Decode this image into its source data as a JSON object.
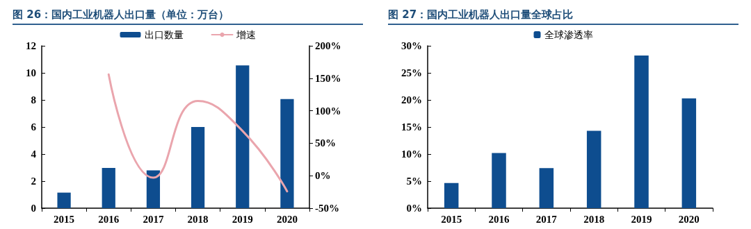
{
  "chart_data": [
    {
      "type": "bar",
      "title": "图 26：国内工业机器人出口量（单位：万台）",
      "categories": [
        "2015",
        "2016",
        "2017",
        "2018",
        "2019",
        "2020"
      ],
      "series": [
        {
          "name": "出口数量",
          "color": "#0e4d8f",
          "values": [
            1.15,
            2.97,
            2.8,
            6.0,
            10.55,
            8.06
          ]
        },
        {
          "name": "增速",
          "type": "line",
          "axis": "y2",
          "color": "#eaa5ad",
          "values": [
            null,
            156,
            -3,
            115,
            69,
            -24
          ]
        }
      ],
      "ylim": [
        0,
        12
      ],
      "yticks": [
        0,
        2,
        4,
        6,
        8,
        10,
        12
      ],
      "y2lim": [
        -50,
        200
      ],
      "y2ticks": [
        {
          "value": -50,
          "label": "-50%"
        },
        {
          "value": 0,
          "label": "0%"
        },
        {
          "value": 50,
          "label": "50%"
        },
        {
          "value": 100,
          "label": "100%"
        },
        {
          "value": 150,
          "label": "150%"
        },
        {
          "value": 200,
          "label": "200%"
        }
      ],
      "legend": "top",
      "grid": false,
      "marker": "none"
    },
    {
      "type": "bar",
      "title": "图 27：国内工业机器人出口量全球占比",
      "categories": [
        "2015",
        "2016",
        "2017",
        "2018",
        "2019",
        "2020"
      ],
      "series": [
        {
          "name": "全球渗透率",
          "color": "#0e4d8f",
          "values": [
            4.65,
            10.2,
            7.4,
            14.3,
            28.2,
            20.3
          ]
        }
      ],
      "ylim": [
        0,
        30
      ],
      "yticks": [
        {
          "value": 0,
          "label": "0%"
        },
        {
          "value": 5,
          "label": "5%"
        },
        {
          "value": 10,
          "label": "10%"
        },
        {
          "value": 15,
          "label": "15%"
        },
        {
          "value": 20,
          "label": "20%"
        },
        {
          "value": 25,
          "label": "25%"
        },
        {
          "value": 30,
          "label": "30%"
        }
      ],
      "legend": "top",
      "grid": false
    }
  ]
}
